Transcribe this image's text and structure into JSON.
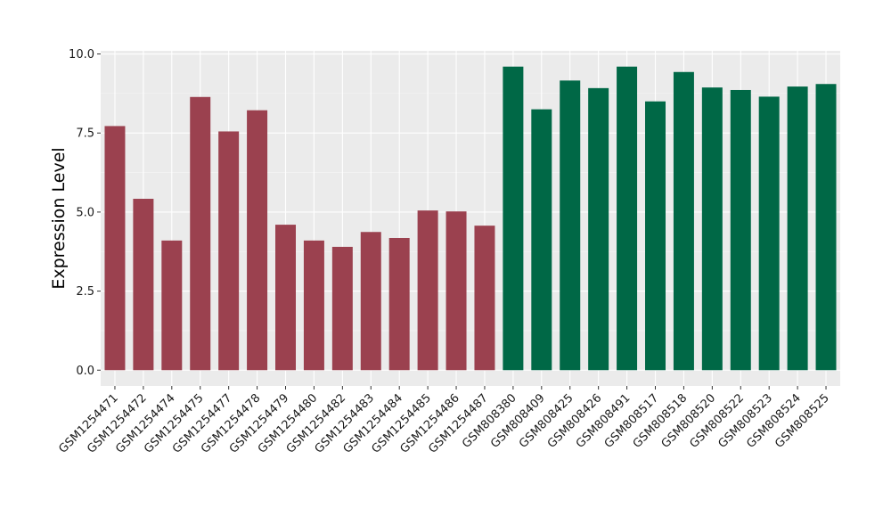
{
  "chart_data": {
    "type": "bar",
    "title": "",
    "xlabel": "",
    "ylabel": "Expression Level",
    "ylim": [
      -0.5,
      10.1
    ],
    "yticks": [
      0.0,
      2.5,
      5.0,
      7.5,
      10.0
    ],
    "ytick_labels": [
      "0.0",
      "2.5",
      "5.0",
      "7.5",
      "10.0"
    ],
    "grid": true,
    "background": "#ebebeb",
    "categories": [
      "GSM1254471",
      "GSM1254472",
      "GSM1254474",
      "GSM1254475",
      "GSM1254477",
      "GSM1254478",
      "GSM1254479",
      "GSM1254480",
      "GSM1254482",
      "GSM1254483",
      "GSM1254484",
      "GSM1254485",
      "GSM1254486",
      "GSM1254487",
      "GSM808380",
      "GSM808409",
      "GSM808425",
      "GSM808426",
      "GSM808491",
      "GSM808517",
      "GSM808518",
      "GSM808520",
      "GSM808522",
      "GSM808523",
      "GSM808524",
      "GSM808525"
    ],
    "values": [
      7.72,
      5.42,
      4.1,
      8.64,
      7.55,
      8.22,
      4.6,
      4.1,
      3.9,
      4.37,
      4.18,
      5.05,
      5.02,
      4.57,
      9.6,
      8.25,
      9.16,
      8.92,
      9.6,
      8.5,
      9.43,
      8.94,
      8.86,
      8.65,
      8.97,
      9.05
    ],
    "bar_colors": [
      "#9b414f",
      "#9b414f",
      "#9b414f",
      "#9b414f",
      "#9b414f",
      "#9b414f",
      "#9b414f",
      "#9b414f",
      "#9b414f",
      "#9b414f",
      "#9b414f",
      "#9b414f",
      "#9b414f",
      "#9b414f",
      "#006846",
      "#006846",
      "#006846",
      "#006846",
      "#006846",
      "#006846",
      "#006846",
      "#006846",
      "#006846",
      "#006846",
      "#006846",
      "#006846"
    ]
  }
}
